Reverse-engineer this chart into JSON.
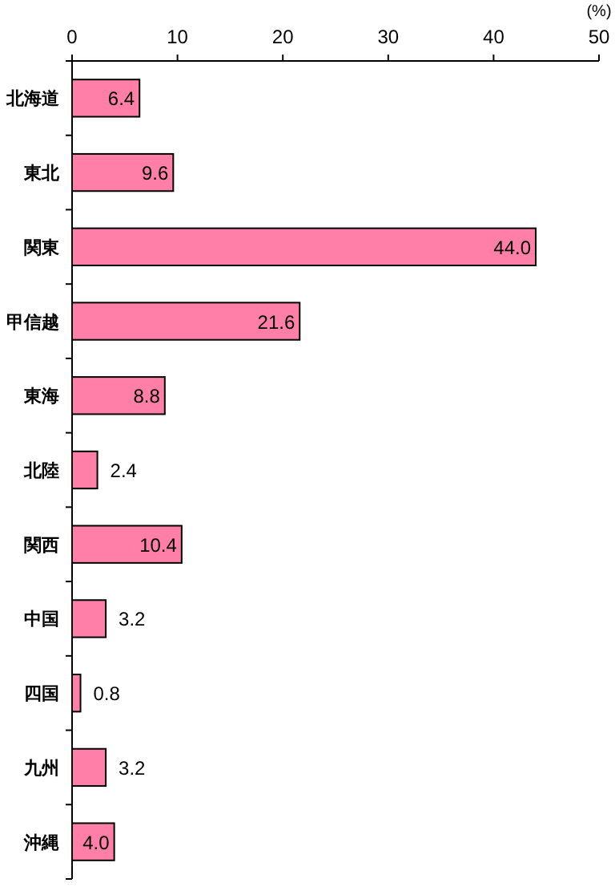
{
  "chart_data": {
    "type": "bar",
    "orientation": "horizontal",
    "xlabel": "(%)",
    "categories": [
      "北海道",
      "東北",
      "関東",
      "甲信越",
      "東海",
      "北陸",
      "関西",
      "中国",
      "四国",
      "九州",
      "沖縄"
    ],
    "values": [
      6.4,
      9.6,
      44.0,
      21.6,
      8.8,
      2.4,
      10.4,
      3.2,
      0.8,
      3.2,
      4.0
    ],
    "value_labels": [
      "6.4",
      "9.6",
      "44.0",
      "21.6",
      "8.8",
      "2.4",
      "10.4",
      "3.2",
      "0.8",
      "3.2",
      "4.0"
    ],
    "color": "#ff7fa8",
    "xlim": [
      0,
      50
    ],
    "xticks": [
      0,
      10,
      20,
      30,
      40,
      50
    ]
  }
}
